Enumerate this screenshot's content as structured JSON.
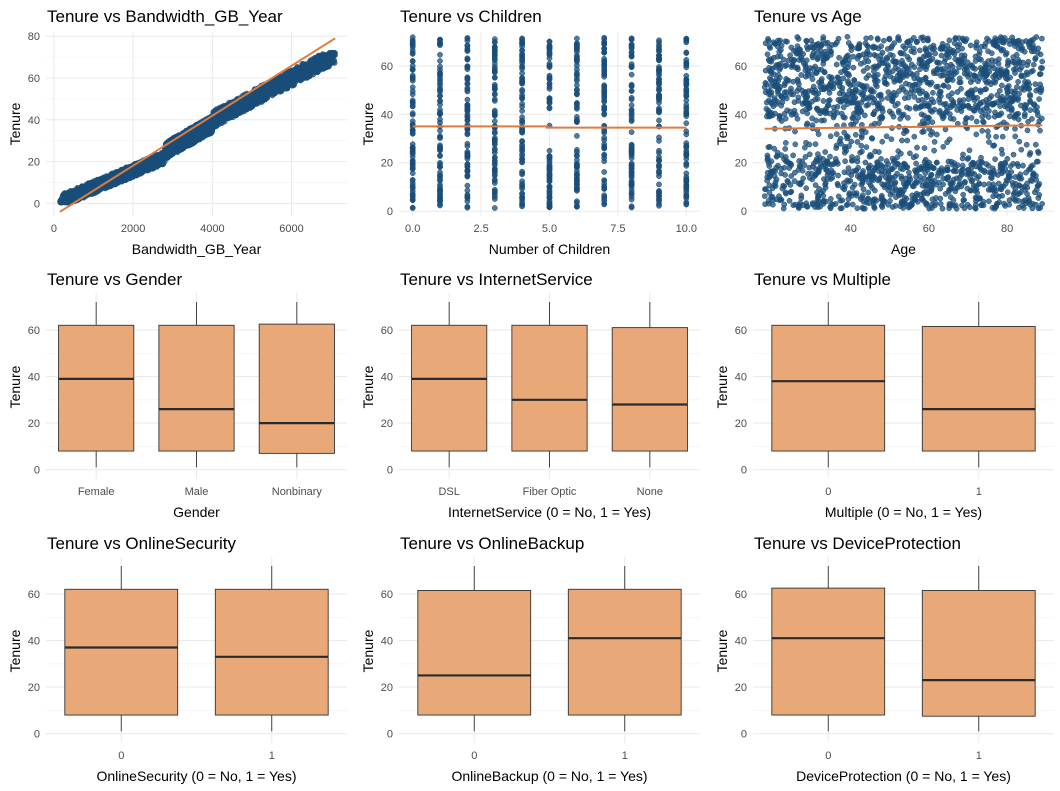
{
  "colors": {
    "point": "#1a4e7a",
    "trend": "#e07b39",
    "box_fill": "#e9a878",
    "box_stroke": "#333333",
    "grid": "#ebebeb",
    "median": "#2b2b2b"
  },
  "chart_data": [
    {
      "type": "scatter",
      "title": "Tenure vs Bandwidth_GB_Year",
      "xlabel": "Bandwidth_GB_Year",
      "ylabel": "Tenure",
      "xlim": [
        -200,
        7400
      ],
      "ylim": [
        -6,
        82
      ],
      "xticks": [
        0,
        2000,
        4000,
        6000
      ],
      "yticks": [
        0,
        20,
        40,
        60,
        80
      ],
      "trend": [
        [
          150,
          -4
        ],
        [
          7100,
          79
        ]
      ],
      "point_bands": [
        {
          "x": [
            150,
            2800
          ],
          "y_center": [
            1,
            22
          ],
          "spread": 3
        },
        {
          "x": [
            2800,
            4000
          ],
          "y_center": [
            25,
            38
          ],
          "spread": 4
        },
        {
          "x": [
            4000,
            7100
          ],
          "y_center": [
            40,
            71
          ],
          "spread": 4
        }
      ]
    },
    {
      "type": "scatter",
      "title": "Tenure vs Children",
      "xlabel": "Number of Children",
      "ylabel": "Tenure",
      "xlim": [
        -0.5,
        10.5
      ],
      "ylim": [
        -2,
        74
      ],
      "xticks": [
        "0.0",
        "2.5",
        "5.0",
        "7.5",
        "10.0"
      ],
      "xtick_values": [
        0,
        2.5,
        5,
        7.5,
        10
      ],
      "yticks": [
        0,
        20,
        40,
        60
      ],
      "x_values": [
        0,
        1,
        2,
        3,
        4,
        5,
        6,
        7,
        8,
        9,
        10
      ],
      "point_range": [
        1,
        72
      ],
      "trend": [
        [
          0,
          35
        ],
        [
          4.9,
          35
        ],
        [
          4.9,
          34.5
        ],
        [
          10,
          34.5
        ]
      ]
    },
    {
      "type": "scatter",
      "title": "Tenure vs Age",
      "xlabel": "Age",
      "ylabel": "Tenure",
      "xlim": [
        15,
        92
      ],
      "ylim": [
        -2,
        74
      ],
      "xticks": [
        40,
        60,
        80
      ],
      "yticks": [
        0,
        20,
        40,
        60
      ],
      "point_x_range": [
        18,
        89
      ],
      "point_range": [
        1,
        72
      ],
      "trend": [
        [
          18,
          34
        ],
        [
          89,
          35.5
        ]
      ]
    },
    {
      "type": "box",
      "title": "Tenure vs Gender",
      "xlabel": "Gender",
      "ylabel": "Tenure",
      "ylim": [
        -4,
        75
      ],
      "yticks": [
        0,
        20,
        40,
        60
      ],
      "categories": [
        "Female",
        "Male",
        "Nonbinary"
      ],
      "boxes": [
        {
          "min": 1,
          "q1": 8,
          "median": 39,
          "q3": 62,
          "max": 72
        },
        {
          "min": 1,
          "q1": 8,
          "median": 26,
          "q3": 62,
          "max": 72
        },
        {
          "min": 1,
          "q1": 7,
          "median": 20,
          "q3": 62.5,
          "max": 72
        }
      ]
    },
    {
      "type": "box",
      "title": "Tenure vs InternetService",
      "xlabel": "InternetService (0 = No, 1 = Yes)",
      "ylabel": "Tenure",
      "ylim": [
        -4,
        75
      ],
      "yticks": [
        0,
        20,
        40,
        60
      ],
      "categories": [
        "DSL",
        "Fiber Optic",
        "None"
      ],
      "boxes": [
        {
          "min": 1,
          "q1": 8,
          "median": 39,
          "q3": 62,
          "max": 72
        },
        {
          "min": 1,
          "q1": 8,
          "median": 30,
          "q3": 62,
          "max": 72
        },
        {
          "min": 1,
          "q1": 8,
          "median": 28,
          "q3": 61,
          "max": 72
        }
      ]
    },
    {
      "type": "box",
      "title": "Tenure vs Multiple",
      "xlabel": "Multiple (0 = No, 1 = Yes)",
      "ylabel": "Tenure",
      "ylim": [
        -4,
        75
      ],
      "yticks": [
        0,
        20,
        40,
        60
      ],
      "categories": [
        "0",
        "1"
      ],
      "boxes": [
        {
          "min": 1,
          "q1": 8,
          "median": 38,
          "q3": 62,
          "max": 72
        },
        {
          "min": 1,
          "q1": 8,
          "median": 26,
          "q3": 61.5,
          "max": 72
        }
      ]
    },
    {
      "type": "box",
      "title": "Tenure vs OnlineSecurity",
      "xlabel": "OnlineSecurity (0 = No, 1 = Yes)",
      "ylabel": "Tenure",
      "ylim": [
        -4,
        75
      ],
      "yticks": [
        0,
        20,
        40,
        60
      ],
      "categories": [
        "0",
        "1"
      ],
      "boxes": [
        {
          "min": 1,
          "q1": 8,
          "median": 37,
          "q3": 62,
          "max": 72
        },
        {
          "min": 1,
          "q1": 8,
          "median": 33,
          "q3": 62,
          "max": 72
        }
      ]
    },
    {
      "type": "box",
      "title": "Tenure vs OnlineBackup",
      "xlabel": "OnlineBackup (0 = No, 1 = Yes)",
      "ylabel": "Tenure",
      "ylim": [
        -4,
        75
      ],
      "yticks": [
        0,
        20,
        40,
        60
      ],
      "categories": [
        "0",
        "1"
      ],
      "boxes": [
        {
          "min": 1,
          "q1": 8,
          "median": 25,
          "q3": 61.5,
          "max": 72
        },
        {
          "min": 1,
          "q1": 8,
          "median": 41,
          "q3": 62,
          "max": 72
        }
      ]
    },
    {
      "type": "box",
      "title": "Tenure vs DeviceProtection",
      "xlabel": "DeviceProtection (0 = No, 1 = Yes)",
      "ylabel": "Tenure",
      "ylim": [
        -4,
        75
      ],
      "yticks": [
        0,
        20,
        40,
        60
      ],
      "categories": [
        "0",
        "1"
      ],
      "boxes": [
        {
          "min": 1,
          "q1": 8,
          "median": 41,
          "q3": 62.5,
          "max": 72
        },
        {
          "min": 1,
          "q1": 7.5,
          "median": 23,
          "q3": 61.5,
          "max": 72
        }
      ]
    }
  ]
}
